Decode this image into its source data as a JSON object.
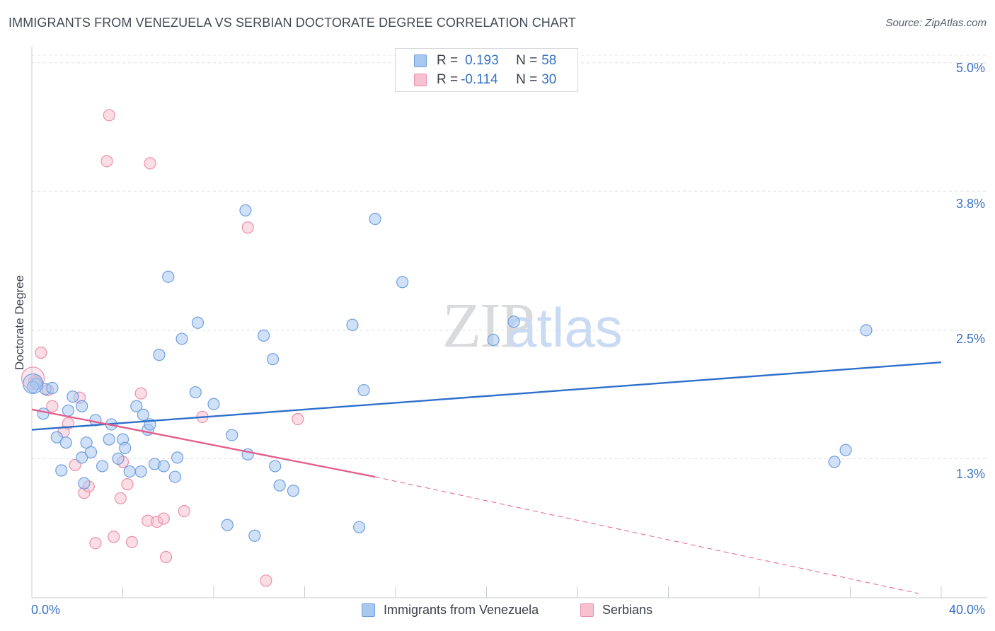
{
  "title": "IMMIGRANTS FROM VENEZUELA VS SERBIAN DOCTORATE DEGREE CORRELATION CHART",
  "source": "Source: ZipAtlas.com",
  "watermark": {
    "zip": "ZIP",
    "atlas": "atlas"
  },
  "legend": {
    "r_label": "R =",
    "n_label": "N =",
    "rows": [
      {
        "r": "0.193",
        "n": "58",
        "color": "#a9c8f0",
        "border": "#6f9fe0"
      },
      {
        "r": "-0.114",
        "n": "30",
        "color": "#f7c1d0",
        "border": "#ec8fab"
      }
    ]
  },
  "bottom_legend": [
    "Immigrants from Venezuela",
    "Serbians"
  ],
  "chart_data": {
    "type": "scatter",
    "title": "IMMIGRANTS FROM VENEZUELA VS SERBIAN DOCTORATE DEGREE CORRELATION CHART",
    "xlabel": "",
    "ylabel": "Doctorate Degree",
    "xlim": [
      0,
      40
    ],
    "ylim": [
      0,
      5.15
    ],
    "x_tick_labels": [
      "0.0%",
      "40.0%"
    ],
    "y_ticks": [
      1.3,
      2.5,
      3.8,
      5.0
    ],
    "y_tick_labels": [
      "1.3%",
      "2.5%",
      "3.8%",
      "5.0%"
    ],
    "grid": true,
    "series": [
      {
        "name": "Immigrants from Venezuela",
        "color": "#a9c8f0",
        "edge": "#6f9fe0",
        "line_color": "#2f6fcc",
        "trend": {
          "x": [
            0,
            40
          ],
          "y": [
            1.57,
            2.2
          ]
        },
        "points": [
          [
            0.2,
            2.0
          ],
          [
            0.5,
            1.72
          ],
          [
            0.6,
            1.95
          ],
          [
            0.9,
            1.96
          ],
          [
            1.1,
            1.5
          ],
          [
            1.3,
            1.19
          ],
          [
            1.5,
            1.45
          ],
          [
            1.6,
            1.75
          ],
          [
            1.8,
            1.88
          ],
          [
            2.2,
            1.31
          ],
          [
            2.2,
            1.79
          ],
          [
            2.3,
            1.07
          ],
          [
            2.4,
            1.45
          ],
          [
            2.6,
            1.36
          ],
          [
            2.8,
            1.66
          ],
          [
            3.1,
            1.23
          ],
          [
            3.4,
            1.48
          ],
          [
            3.5,
            1.62
          ],
          [
            3.8,
            1.3
          ],
          [
            4.0,
            1.48
          ],
          [
            4.1,
            1.4
          ],
          [
            4.3,
            1.18
          ],
          [
            4.6,
            1.79
          ],
          [
            4.8,
            1.18
          ],
          [
            4.9,
            1.71
          ],
          [
            5.1,
            1.57
          ],
          [
            5.2,
            1.62
          ],
          [
            5.4,
            1.25
          ],
          [
            5.6,
            2.27
          ],
          [
            5.8,
            1.23
          ],
          [
            6.0,
            3.0
          ],
          [
            6.3,
            1.13
          ],
          [
            6.4,
            1.31
          ],
          [
            6.6,
            2.42
          ],
          [
            7.2,
            1.92
          ],
          [
            7.3,
            2.57
          ],
          [
            8.0,
            1.81
          ],
          [
            8.6,
            0.68
          ],
          [
            8.8,
            1.52
          ],
          [
            9.4,
            3.62
          ],
          [
            9.5,
            1.34
          ],
          [
            9.8,
            0.58
          ],
          [
            10.2,
            2.45
          ],
          [
            10.6,
            2.23
          ],
          [
            10.7,
            1.23
          ],
          [
            10.9,
            1.05
          ],
          [
            11.5,
            1.0
          ],
          [
            14.1,
            2.55
          ],
          [
            14.4,
            0.66
          ],
          [
            14.6,
            1.94
          ],
          [
            15.1,
            3.54
          ],
          [
            16.3,
            2.95
          ],
          [
            20.3,
            2.41
          ],
          [
            21.2,
            2.58
          ],
          [
            35.3,
            1.27
          ],
          [
            35.8,
            1.38
          ],
          [
            36.7,
            2.5
          ],
          [
            0.05,
            1.97
          ]
        ]
      },
      {
        "name": "Serbians",
        "color": "#f7c1d0",
        "edge": "#ec8fab",
        "line_color": "#e45f8c",
        "trend": {
          "x": [
            0,
            15.1
          ],
          "y": [
            1.76,
            1.13
          ]
        },
        "trend_dashed": {
          "x": [
            15.1,
            39.0
          ],
          "y": [
            1.13,
            0.04
          ]
        },
        "points": [
          [
            0.2,
            2.03
          ],
          [
            0.4,
            2.29
          ],
          [
            0.7,
            1.94
          ],
          [
            0.9,
            1.79
          ],
          [
            1.4,
            1.55
          ],
          [
            1.6,
            1.63
          ],
          [
            1.9,
            1.24
          ],
          [
            2.1,
            1.87
          ],
          [
            2.3,
            0.98
          ],
          [
            2.5,
            1.04
          ],
          [
            2.8,
            0.51
          ],
          [
            3.3,
            4.08
          ],
          [
            3.4,
            4.51
          ],
          [
            3.6,
            0.57
          ],
          [
            3.9,
            0.93
          ],
          [
            4.0,
            1.27
          ],
          [
            4.2,
            1.06
          ],
          [
            4.4,
            0.52
          ],
          [
            4.8,
            1.91
          ],
          [
            5.1,
            0.72
          ],
          [
            5.2,
            4.06
          ],
          [
            5.5,
            0.71
          ],
          [
            5.8,
            0.74
          ],
          [
            5.9,
            0.38
          ],
          [
            6.7,
            0.81
          ],
          [
            7.5,
            1.69
          ],
          [
            9.5,
            3.46
          ],
          [
            10.3,
            0.16
          ],
          [
            11.7,
            1.67
          ],
          [
            0.1,
            2.02
          ]
        ]
      }
    ]
  }
}
